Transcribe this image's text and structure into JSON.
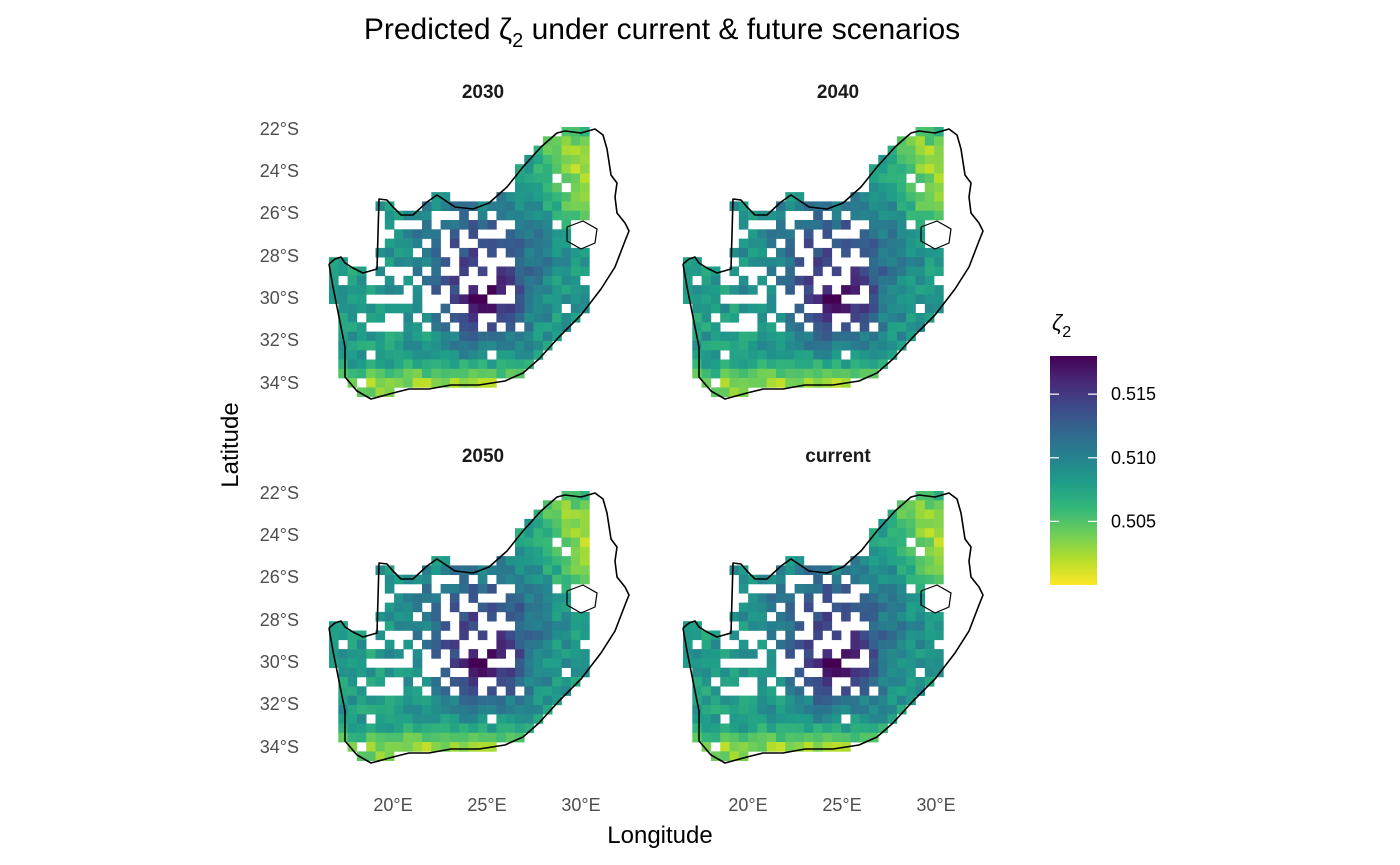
{
  "chart_data": {
    "type": "heatmap",
    "title": "Predicted ζ",
    "title_subscript": "2",
    "title_rest": " under current & future scenarios",
    "xlabel": "Longitude",
    "ylabel": "Latitude",
    "x_ticks": [
      "20°E",
      "25°E",
      "30°E"
    ],
    "y_ticks": [
      "22°S",
      "24°S",
      "26°S",
      "28°S",
      "30°S",
      "32°S",
      "34°S"
    ],
    "panels": [
      "2030",
      "2040",
      "2050",
      "current"
    ],
    "legend": {
      "title": "ζ",
      "title_subscript": "2",
      "ticks": [
        "0.505",
        "0.510",
        "0.515"
      ],
      "range": [
        0.5,
        0.518
      ],
      "palette": "viridis (reversed)",
      "colors": [
        "#fde725",
        "#b5de2b",
        "#6ece58",
        "#35b779",
        "#1f9e89",
        "#26828e",
        "#31688e",
        "#3e4989",
        "#482878",
        "#440154"
      ]
    },
    "grid": false,
    "legend_position": "right"
  }
}
